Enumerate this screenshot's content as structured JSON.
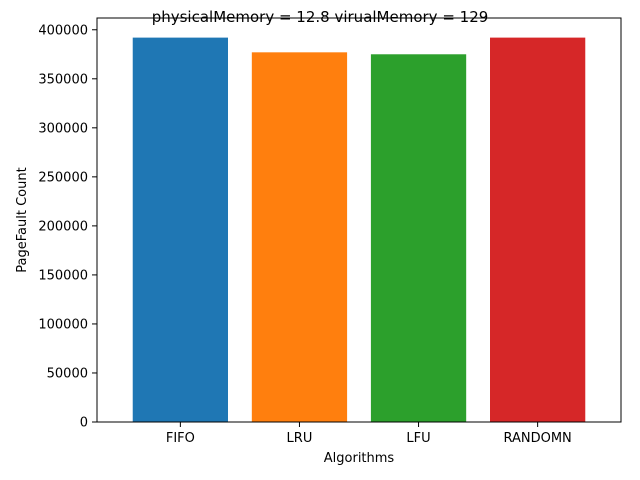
{
  "chart_data": {
    "type": "bar",
    "title": "physicalMemory = 12.8 virualMemory = 129",
    "xlabel": "Algorithms",
    "ylabel": "PageFault Count",
    "categories": [
      "FIFO",
      "LRU",
      "LFU",
      "RANDOMN"
    ],
    "values": [
      392000,
      377000,
      375000,
      392000
    ],
    "colors": [
      "#1f77b4",
      "#ff7f0e",
      "#2ca02c",
      "#d62728"
    ],
    "ylim": [
      0,
      412000
    ],
    "yticks": [
      0,
      50000,
      100000,
      150000,
      200000,
      250000,
      300000,
      350000,
      400000
    ],
    "grid": false,
    "legend": false
  }
}
